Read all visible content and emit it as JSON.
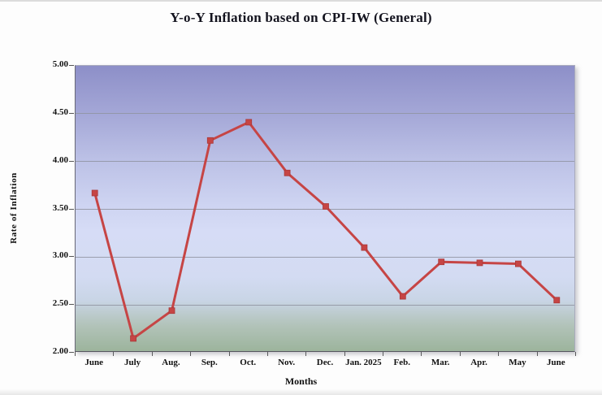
{
  "title": "Y-o-Y Inflation based on CPI-IW (General)",
  "chart_data": {
    "type": "line",
    "title": "Y-o-Y Inflation based on CPI-IW (General)",
    "xlabel": "Months",
    "ylabel": "Rate of Inflation",
    "categories": [
      "June",
      "July",
      "Aug.",
      "Sep.",
      "Oct.",
      "Nov.",
      "Dec.",
      "Jan. 2025",
      "Feb.",
      "Mar.",
      "Apr.",
      "May",
      "June"
    ],
    "values": [
      3.67,
      2.15,
      2.44,
      4.22,
      4.41,
      3.88,
      3.53,
      3.1,
      2.59,
      2.95,
      2.94,
      2.93,
      2.55
    ],
    "data_labels": [
      "3.67",
      "2.15",
      "2.44",
      "4.22",
      "4.41",
      "3.88",
      "3.53",
      "3.10",
      "2.59",
      "2.95",
      "2.94",
      "2.93",
      "2.55"
    ],
    "ylim": [
      2.0,
      5.0
    ],
    "ytick_labels": [
      "5.00",
      "4.50",
      "4.00",
      "3.50",
      "3.00",
      "2.50",
      "2.00"
    ],
    "ytick_values": [
      5.0,
      4.5,
      4.0,
      3.5,
      3.0,
      2.5,
      2.0
    ],
    "grid": true,
    "legend": "none",
    "marker": "square"
  },
  "colors": {
    "line": "#c64545",
    "marker": "#c64545",
    "marker_edge": "#a93838",
    "gridline": "#8f93a0",
    "title_text": "#14141f",
    "plot_gradient": [
      "#8d8fc8 0%",
      "#a3a6d6 16%",
      "#bcc1e6 33%",
      "#cdd3f1 48%",
      "#d6dcf6 58%",
      "#d3dbf2 74%",
      "#c9d5e6 82%",
      "#b2c3b9 91%",
      "#9cb49c 100%"
    ]
  }
}
